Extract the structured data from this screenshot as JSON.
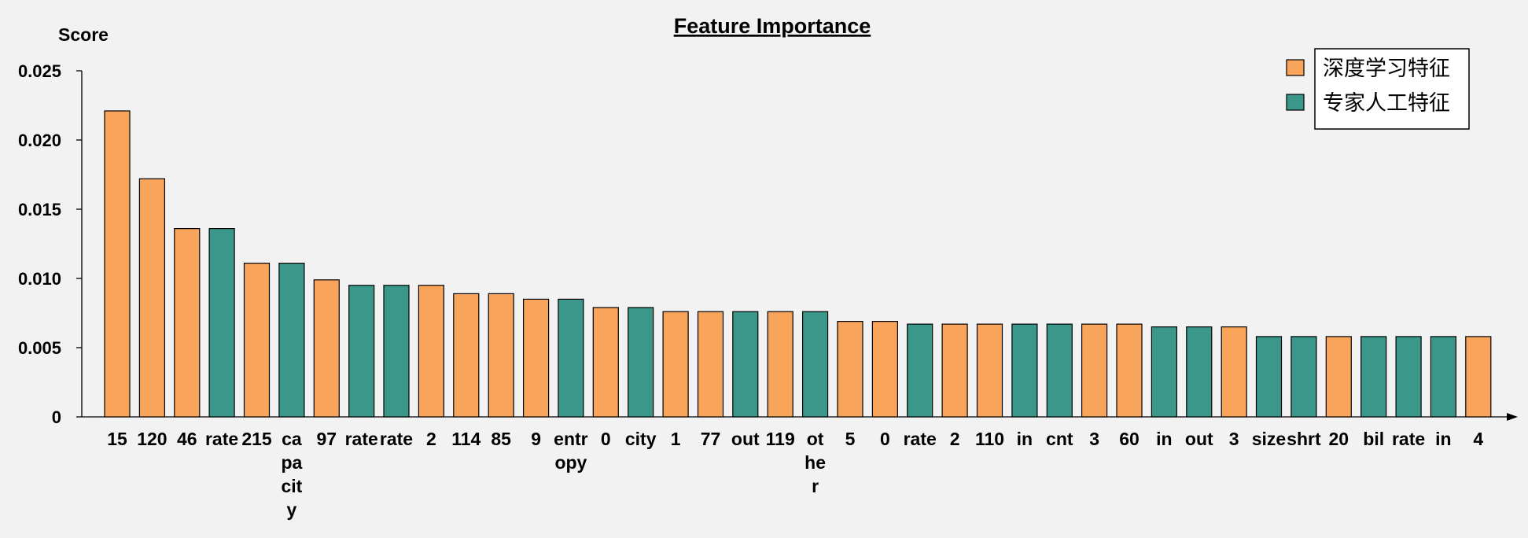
{
  "chart_data": {
    "type": "bar",
    "title": "Feature Importance",
    "ylabel": "Score",
    "xlabel": "",
    "ylim": [
      0,
      0.025
    ],
    "yticks": [
      "0",
      "0.005",
      "0.010",
      "0.015",
      "0.020",
      "0.025"
    ],
    "ytick_values": [
      0,
      0.005,
      0.01,
      0.015,
      0.02,
      0.025
    ],
    "grid": false,
    "legend_position": "top-right",
    "legend": [
      {
        "name": "深度学习特征",
        "color": "#F8A45A"
      },
      {
        "name": "专家人工特征",
        "color": "#3A978A"
      }
    ],
    "categories": [
      "15",
      "120",
      "46",
      "rate",
      "215",
      "capacity",
      "97",
      "rate",
      "rate",
      "2",
      "114",
      "85",
      "9",
      "entropy",
      "0",
      "city",
      "1",
      "77",
      "out",
      "119",
      "other",
      "5",
      "0",
      "rate",
      "2",
      "110",
      "in",
      "cnt",
      "3",
      "60",
      "in",
      "out",
      "3",
      "size",
      "shrt",
      "20",
      "bil",
      "rate",
      "in",
      "4"
    ],
    "category_lines": [
      [
        "15"
      ],
      [
        "120"
      ],
      [
        "46"
      ],
      [
        "rate"
      ],
      [
        "215"
      ],
      [
        "ca",
        "pa",
        "cit",
        "y"
      ],
      [
        "97"
      ],
      [
        "rate"
      ],
      [
        "rate"
      ],
      [
        "2"
      ],
      [
        "114"
      ],
      [
        "85"
      ],
      [
        "9"
      ],
      [
        "entr",
        "opy"
      ],
      [
        "0"
      ],
      [
        "city"
      ],
      [
        "1"
      ],
      [
        "77"
      ],
      [
        "out"
      ],
      [
        "119"
      ],
      [
        "ot",
        "he",
        "r"
      ],
      [
        "5"
      ],
      [
        "0"
      ],
      [
        "rate"
      ],
      [
        "2"
      ],
      [
        "110"
      ],
      [
        "in"
      ],
      [
        "cnt"
      ],
      [
        "3"
      ],
      [
        "60"
      ],
      [
        "in"
      ],
      [
        "out"
      ],
      [
        "3"
      ],
      [
        "size"
      ],
      [
        "shrt"
      ],
      [
        "20"
      ],
      [
        "bil"
      ],
      [
        "rate"
      ],
      [
        "in"
      ],
      [
        "4"
      ]
    ],
    "values": [
      0.0221,
      0.0172,
      0.0136,
      0.0136,
      0.0111,
      0.0111,
      0.0099,
      0.0095,
      0.0095,
      0.0095,
      0.0089,
      0.0089,
      0.0085,
      0.0085,
      0.0079,
      0.0079,
      0.0076,
      0.0076,
      0.0076,
      0.0076,
      0.0076,
      0.0069,
      0.0069,
      0.0067,
      0.0067,
      0.0067,
      0.0067,
      0.0067,
      0.0067,
      0.0067,
      0.0065,
      0.0065,
      0.0065,
      0.0058,
      0.0058,
      0.0058,
      0.0058,
      0.0058,
      0.0058,
      0.0058
    ],
    "groups": [
      0,
      0,
      0,
      1,
      0,
      1,
      0,
      1,
      1,
      0,
      0,
      0,
      0,
      1,
      0,
      1,
      0,
      0,
      1,
      0,
      1,
      0,
      0,
      1,
      0,
      0,
      1,
      1,
      0,
      0,
      1,
      1,
      0,
      1,
      1,
      0,
      1,
      1,
      1,
      0
    ]
  }
}
